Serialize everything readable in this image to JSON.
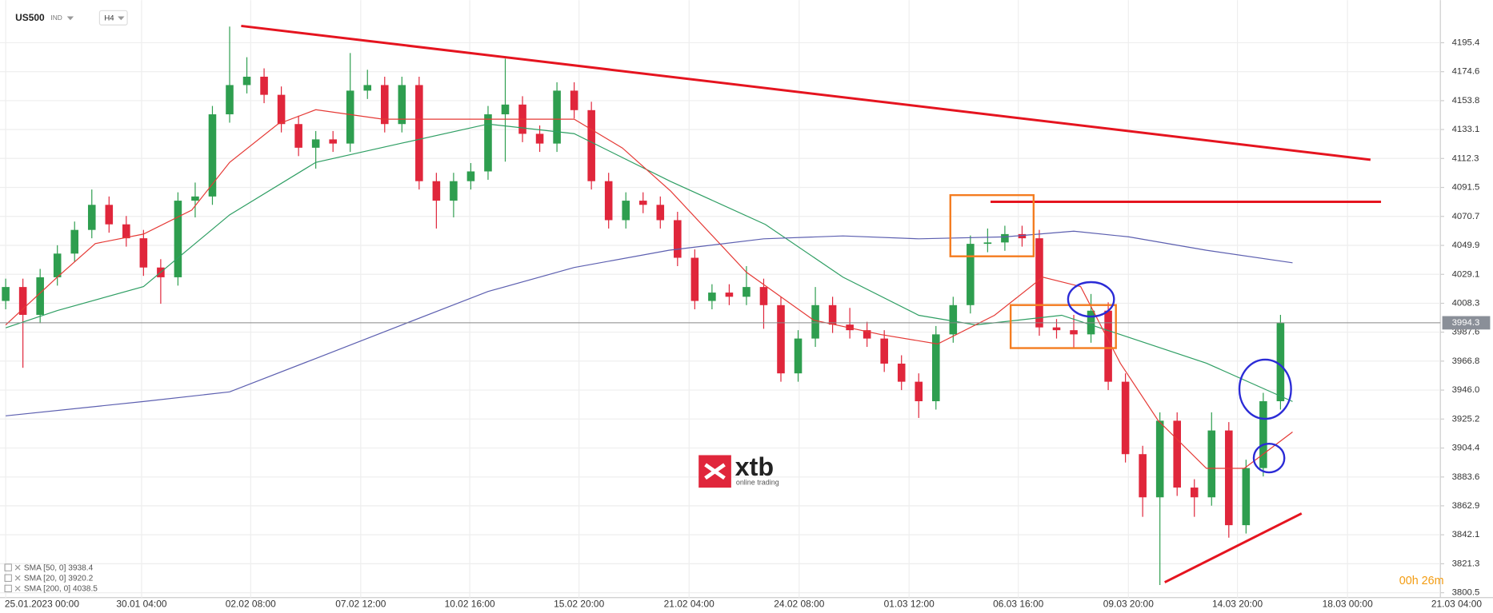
{
  "chart_data": {
    "type": "candlestick",
    "symbol": "US500",
    "market": "IND",
    "timeframe": "H4",
    "timer": "00h 26m",
    "logo": {
      "name": "xtb",
      "tagline": "online trading"
    },
    "up_color": "#2e9e4f",
    "down_color": "#e0263b",
    "open": [
      4010,
      4020,
      4000,
      4027,
      4044,
      4061,
      4079,
      4065,
      4055,
      4034,
      4027,
      4082,
      4085,
      4144,
      4165,
      4171,
      4158,
      4137,
      4120,
      4126,
      4123,
      4161,
      4165,
      4137,
      4165,
      4096,
      4082,
      4096,
      4103,
      4144,
      4151,
      4130,
      4123,
      4161,
      4147,
      4096,
      4068,
      4082,
      4079,
      4068,
      4041,
      4010,
      4016,
      4013,
      4020,
      4007,
      3958,
      3983,
      4007,
      3993,
      3989,
      3983,
      3965,
      3952,
      3938,
      3986,
      4007,
      4051,
      4052,
      4058,
      4055,
      3991,
      3989,
      3986,
      4003,
      3952,
      3900,
      3869,
      3924,
      3876,
      3869,
      3917,
      3849,
      3890,
      3938
    ],
    "high": [
      4026,
      4026,
      4033,
      4050,
      4067,
      4090,
      4085,
      4071,
      4061,
      4040,
      4088,
      4095,
      4150,
      4207,
      4185,
      4177,
      4164,
      4143,
      4132,
      4132,
      4188,
      4176,
      4171,
      4171,
      4171,
      4102,
      4102,
      4109,
      4150,
      4184,
      4157,
      4136,
      4167,
      4167,
      4153,
      4102,
      4088,
      4088,
      4085,
      4074,
      4047,
      4022,
      4022,
      4035,
      4026,
      4013,
      3989,
      4020,
      4013,
      4005,
      3995,
      3989,
      3971,
      3958,
      3992,
      4013,
      4057,
      4062,
      4064,
      4064,
      4061,
      3997,
      4000,
      4015,
      4009,
      3958,
      3906,
      3930,
      3930,
      3882,
      3930,
      3923,
      3896,
      3944,
      4000
    ],
    "low": [
      4004,
      3962,
      3994,
      4021,
      4038,
      4055,
      4059,
      4049,
      4028,
      4008,
      4021,
      4070,
      4079,
      4138,
      4159,
      4152,
      4131,
      4114,
      4105,
      4117,
      4117,
      4155,
      4131,
      4131,
      4090,
      4062,
      4070,
      4090,
      4097,
      4110,
      4124,
      4117,
      4117,
      4141,
      4090,
      4062,
      4062,
      4073,
      4062,
      4035,
      4004,
      4004,
      4007,
      4007,
      3990,
      3952,
      3952,
      3977,
      3987,
      3983,
      3977,
      3959,
      3946,
      3926,
      3932,
      3980,
      4001,
      4045,
      4046,
      4049,
      3985,
      3983,
      3976,
      3980,
      3946,
      3894,
      3855,
      3806,
      3870,
      3855,
      3863,
      3840,
      3843,
      3884,
      3932
    ],
    "close": [
      4020,
      4000,
      4027,
      4044,
      4061,
      4079,
      4065,
      4055,
      4034,
      4027,
      4082,
      4085,
      4144,
      4165,
      4171,
      4158,
      4137,
      4120,
      4126,
      4123,
      4161,
      4165,
      4137,
      4165,
      4096,
      4082,
      4096,
      4103,
      4144,
      4151,
      4130,
      4123,
      4161,
      4147,
      4096,
      4068,
      4082,
      4079,
      4068,
      4041,
      4010,
      4016,
      4013,
      4020,
      4007,
      3958,
      3983,
      4007,
      3993,
      3989,
      3983,
      3965,
      3952,
      3938,
      3986,
      4007,
      4051,
      4052,
      4058,
      4055,
      3991,
      3989,
      3986,
      4003,
      3952,
      3900,
      3869,
      3924,
      3876,
      3869,
      3917,
      3849,
      3890,
      3938,
      3994.3
    ],
    "series": [
      {
        "name": "SMA [50, 0] 3938.4",
        "color": "#2e9e63",
        "x": [
          0,
          3,
          8,
          13,
          18,
          23,
          28,
          33,
          38.6,
          44.1,
          48.6,
          53,
          56.3,
          61.3,
          64.7,
          69.7,
          74.7
        ],
        "values": [
          3990.7,
          4003.1,
          4020.3,
          4071.8,
          4109.5,
          4123.3,
          4137,
          4130.1,
          4095.8,
          4064.9,
          4027.1,
          3999.7,
          3992.8,
          3999.7,
          3985.9,
          3965.3,
          3937.8
        ]
      },
      {
        "name": "SMA [20, 0] 3920.2",
        "color": "#e53935",
        "x": [
          0,
          3,
          5.2,
          8,
          10.8,
          13,
          15.8,
          18,
          21.9,
          24.7,
          29.7,
          33,
          35.8,
          38.6,
          43,
          46.9,
          50.8,
          54.1,
          57.4,
          60.2,
          62.4,
          64.7,
          66.9,
          69.7,
          71.9,
          74.7
        ],
        "values": [
          3992.8,
          4027.1,
          4051.2,
          4058,
          4075.2,
          4109.5,
          4137,
          4147.3,
          4140.5,
          4140.5,
          4140.5,
          4140.5,
          4119.8,
          4088.9,
          4030.6,
          3996.2,
          3985.9,
          3979.1,
          3999.7,
          4027.1,
          4020.3,
          3965.3,
          3924.1,
          3889.8,
          3889.8,
          3915.9
        ]
      },
      {
        "name": "SMA [200, 0] 4038.5",
        "color": "#5c5fb0",
        "x": [
          0,
          8,
          13,
          18,
          23,
          28,
          33,
          38.5,
          44,
          48.6,
          53,
          58,
          62,
          65.2,
          69.7,
          74.7
        ],
        "values": [
          3927.5,
          3937.8,
          3944.7,
          3968.7,
          3992.8,
          4016.8,
          4034,
          4046.4,
          4054.6,
          4056.7,
          4054.6,
          4056,
          4060.1,
          4056,
          4046.4,
          4037.4
        ]
      }
    ],
    "xlim": [
      -0.33,
      83.28
    ],
    "xticks": [
      {
        "value": 0,
        "label": "25.01.2023 00:00"
      },
      {
        "value": 7.89,
        "label": "30.01 04:00"
      },
      {
        "value": 14.22,
        "label": "02.02 08:00"
      },
      {
        "value": 20.61,
        "label": "07.02 12:00"
      },
      {
        "value": 26.94,
        "label": "10.02 16:00"
      },
      {
        "value": 33.28,
        "label": "15.02 20:00"
      },
      {
        "value": 39.67,
        "label": "21.02 04:00"
      },
      {
        "value": 46.06,
        "label": "24.02 08:00"
      },
      {
        "value": 52.44,
        "label": "01.03 12:00"
      },
      {
        "value": 58.78,
        "label": "06.03 16:00"
      },
      {
        "value": 65.17,
        "label": "09.03 20:00"
      },
      {
        "value": 71.5,
        "label": "14.03 20:00"
      },
      {
        "value": 77.89,
        "label": "18.03 00:00"
      },
      {
        "value": 84.22,
        "label": "21.03 04:00"
      }
    ],
    "ylim": [
      3797,
      4226
    ],
    "yticks": [
      4195.4,
      4174.6,
      4153.8,
      4133.1,
      4112.3,
      4091.5,
      4070.7,
      4049.9,
      4029.1,
      4008.3,
      3987.6,
      3966.8,
      {
        "value": 3946,
        "label": "3946.0"
      },
      3925.2,
      3904.4,
      3883.6,
      3862.9,
      3842.1,
      3821.3,
      3800.5
    ],
    "grid": true
  }
}
